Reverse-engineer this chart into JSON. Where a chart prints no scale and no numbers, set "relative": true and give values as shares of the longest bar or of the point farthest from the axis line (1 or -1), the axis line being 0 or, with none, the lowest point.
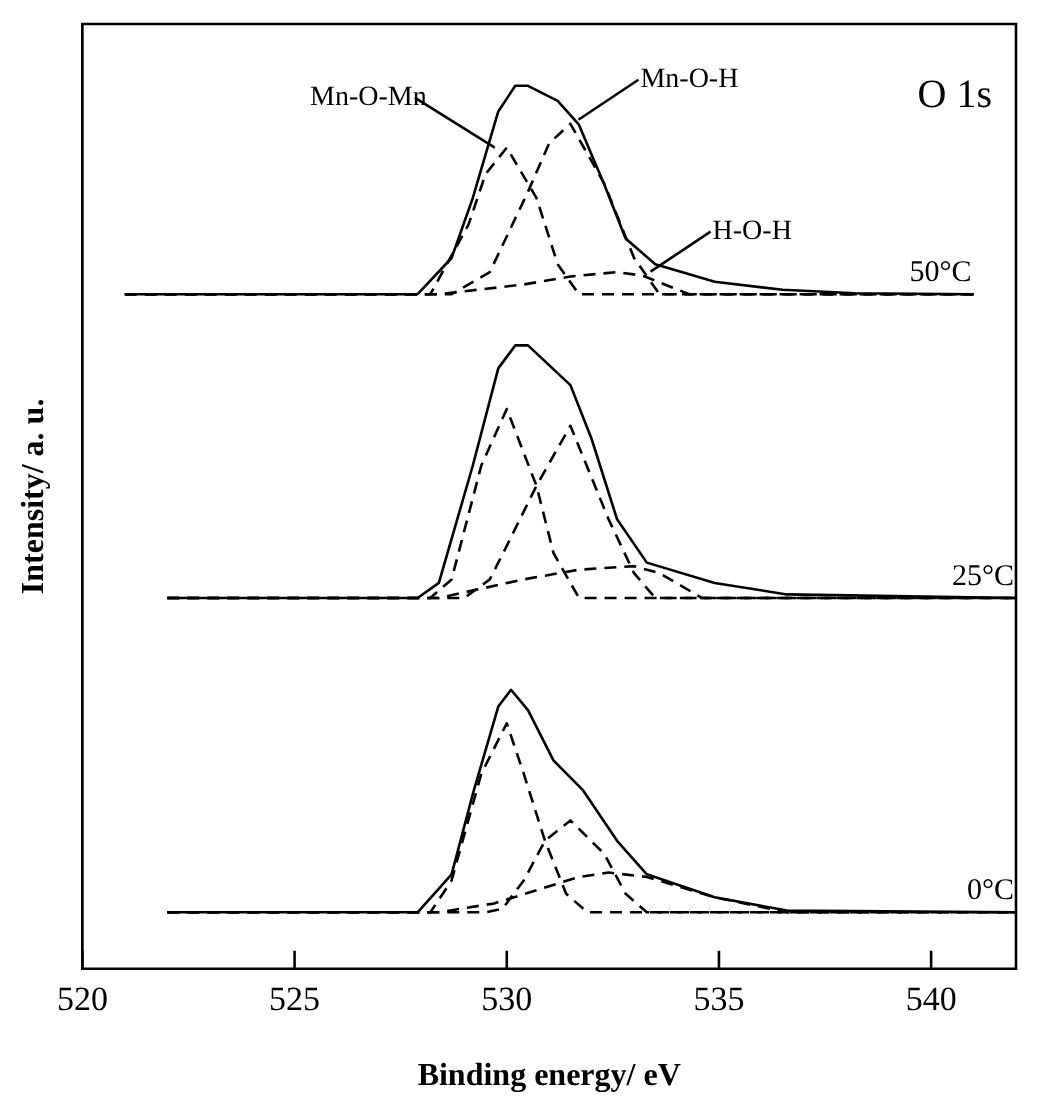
{
  "chart_data": {
    "type": "line",
    "relative": true,
    "xlabel": "Binding energy/ eV",
    "ylabel": "Intensity/ a. u.",
    "xlim": [
      520,
      542
    ],
    "xticks": [
      520,
      525,
      530,
      535,
      540
    ],
    "grid": false,
    "legend": false,
    "marker": "none",
    "annotations": [
      "O 1s"
    ],
    "series": [
      {
        "name": "50°C",
        "color": "#000000",
        "line_style": "solid",
        "x": [
          521.0,
          527.9,
          528.7,
          529.2,
          529.8,
          530.2,
          530.5,
          531.2,
          531.7,
          532.3,
          532.8,
          533.5,
          534.9,
          536.5,
          538.2,
          541.0
        ],
        "values": [
          0.764,
          0.764,
          0.805,
          0.873,
          0.971,
          1.0,
          1.0,
          0.983,
          0.956,
          0.888,
          0.827,
          0.798,
          0.778,
          0.769,
          0.765,
          0.764
        ]
      },
      {
        "name": "Mn-O-Mn",
        "color": "#000000",
        "line_style": "dashed",
        "x": [
          521.0,
          528.2,
          529.1,
          529.5,
          530.0,
          530.7,
          531.2,
          531.7,
          541.0
        ],
        "values": [
          0.764,
          0.764,
          0.843,
          0.9,
          0.93,
          0.873,
          0.798,
          0.764,
          0.764
        ]
      },
      {
        "name": "Mn-O-H",
        "color": "#000000",
        "line_style": "dashed",
        "x": [
          521.0,
          528.7,
          529.6,
          530.5,
          531.0,
          531.5,
          532.3,
          533.0,
          533.6,
          541.0
        ],
        "values": [
          0.764,
          0.764,
          0.789,
          0.88,
          0.935,
          0.957,
          0.889,
          0.805,
          0.764,
          0.764
        ]
      },
      {
        "name": "H-O-H",
        "color": "#000000",
        "line_style": "dashed",
        "x": [
          521.0,
          528.4,
          530.4,
          531.5,
          532.6,
          533.2,
          534.3,
          541.0
        ],
        "values": [
          0.764,
          0.764,
          0.775,
          0.784,
          0.789,
          0.785,
          0.764,
          0.764
        ]
      },
      {
        "name": "25°C",
        "color": "#000000",
        "line_style": "solid",
        "x": [
          522.0,
          527.9,
          528.4,
          529.2,
          529.8,
          530.2,
          530.5,
          531.5,
          532.0,
          532.6,
          533.3,
          534.9,
          536.6,
          542.0
        ],
        "values": [
          0.42,
          0.42,
          0.437,
          0.57,
          0.68,
          0.706,
          0.706,
          0.661,
          0.6,
          0.509,
          0.46,
          0.437,
          0.424,
          0.42
        ]
      },
      {
        "color": "#000000",
        "line_style": "dashed",
        "x": [
          522.0,
          528.2,
          528.7,
          529.4,
          530.0,
          530.7,
          531.1,
          531.7,
          542.0
        ],
        "values": [
          0.42,
          0.42,
          0.441,
          0.57,
          0.634,
          0.547,
          0.471,
          0.42,
          0.42
        ]
      },
      {
        "color": "#000000",
        "line_style": "dashed",
        "x": [
          522.0,
          529.0,
          529.6,
          530.0,
          530.7,
          531.5,
          532.4,
          533.0,
          533.5,
          542.0
        ],
        "values": [
          0.42,
          0.42,
          0.441,
          0.479,
          0.547,
          0.615,
          0.509,
          0.448,
          0.42,
          0.42
        ]
      },
      {
        "color": "#000000",
        "line_style": "dashed",
        "x": [
          522.0,
          528.4,
          530.4,
          531.7,
          533.0,
          533.6,
          534.6,
          542.0
        ],
        "values": [
          0.42,
          0.42,
          0.441,
          0.452,
          0.456,
          0.448,
          0.42,
          0.42
        ]
      },
      {
        "name": "0°C",
        "color": "#000000",
        "line_style": "solid",
        "x": [
          522.0,
          527.9,
          528.7,
          529.2,
          529.8,
          530.1,
          530.5,
          531.1,
          531.8,
          532.6,
          533.3,
          534.9,
          536.6,
          542.0
        ],
        "values": [
          0.064,
          0.064,
          0.107,
          0.198,
          0.297,
          0.316,
          0.293,
          0.236,
          0.202,
          0.145,
          0.107,
          0.081,
          0.066,
          0.064
        ]
      },
      {
        "color": "#000000",
        "line_style": "dashed",
        "x": [
          522.0,
          528.2,
          528.7,
          529.4,
          530.0,
          530.4,
          530.9,
          531.4,
          531.9,
          542.0
        ],
        "values": [
          0.064,
          0.064,
          0.1,
          0.221,
          0.278,
          0.221,
          0.145,
          0.085,
          0.064,
          0.064
        ]
      },
      {
        "color": "#000000",
        "line_style": "dashed",
        "x": [
          522.0,
          529.5,
          529.9,
          530.4,
          530.9,
          531.5,
          532.3,
          532.8,
          533.3,
          542.0
        ],
        "values": [
          0.064,
          0.064,
          0.068,
          0.1,
          0.145,
          0.168,
          0.13,
          0.085,
          0.064,
          0.064
        ]
      },
      {
        "color": "#000000",
        "line_style": "dashed",
        "x": [
          522.0,
          528.4,
          529.7,
          531.7,
          532.4,
          533.3,
          534.9,
          536.6,
          542.0
        ],
        "values": [
          0.064,
          0.064,
          0.074,
          0.104,
          0.109,
          0.104,
          0.081,
          0.064,
          0.064
        ]
      }
    ]
  }
}
